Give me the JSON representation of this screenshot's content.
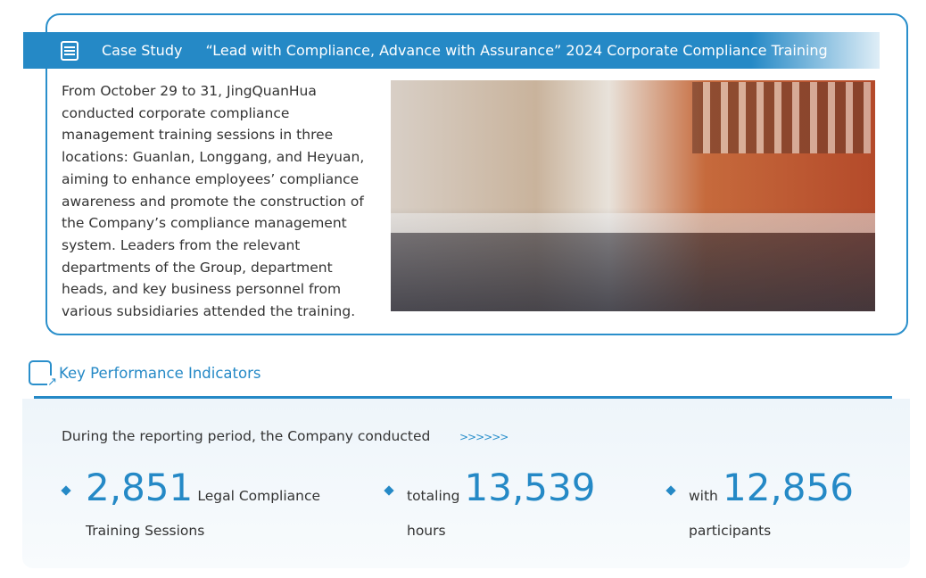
{
  "case_study": {
    "label": "Case Study",
    "title": "“Lead with Compliance, Advance with Assurance” 2024 Corporate Compliance Training",
    "body": "From October 29 to 31, JingQuanHua conducted corporate compliance management training sessions in three locations: Guanlan, Longgang, and Heyuan, aiming to enhance employees’ compliance awareness and promote the construction of the Company’s compliance management system. Leaders from the relevant departments of the Group, department heads, and key business personnel from various subsidiaries attended the training.",
    "icon": "document-icon"
  },
  "kpi": {
    "heading": "Key Performance Indicators",
    "icon": "chart-report-icon",
    "intro": "During the reporting period, the Company conducted",
    "arrows": ">>>>>>",
    "accent": "#2589c6",
    "stats": [
      {
        "prefix": "",
        "value": "2,851",
        "suffix": "Legal Compliance",
        "line2": "Training Sessions"
      },
      {
        "prefix": "totaling",
        "value": "13,539",
        "suffix": "",
        "line2": "hours"
      },
      {
        "prefix": "with",
        "value": "12,856",
        "suffix": "",
        "line2": "participants"
      }
    ]
  }
}
